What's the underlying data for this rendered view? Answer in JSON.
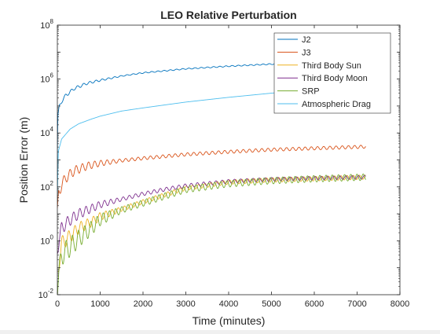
{
  "chart_data": {
    "type": "line",
    "title": "LEO Relative Perturbation",
    "xlabel": "Time (minutes)",
    "ylabel": "Position Error (m)",
    "xlim": [
      0,
      8000
    ],
    "ylim": [
      0.01,
      100000000
    ],
    "yscale": "log",
    "grid": false,
    "legend_location": "top-right",
    "x_ticks": [
      "0",
      "1000",
      "2000",
      "3000",
      "4000",
      "5000",
      "6000",
      "7000",
      "8000"
    ],
    "y_ticks": [
      {
        "base": "10",
        "exp": "-2"
      },
      {
        "base": "10",
        "exp": "0"
      },
      {
        "base": "10",
        "exp": "2"
      },
      {
        "base": "10",
        "exp": "4"
      },
      {
        "base": "10",
        "exp": "6"
      },
      {
        "base": "10",
        "exp": "8"
      }
    ],
    "series": [
      {
        "name": "J2",
        "color": "#0072BD",
        "x": [
          0,
          10,
          50,
          100,
          200,
          400,
          700,
          1000,
          1500,
          2000,
          3000,
          4000,
          5000,
          6000,
          7200
        ],
        "y": [
          1000,
          40000,
          100000,
          150000,
          250000,
          450000,
          700000,
          900000,
          1300000,
          1700000,
          2400000,
          3000000,
          3600000,
          4100000,
          4800000
        ]
      },
      {
        "name": "J3",
        "color": "#D95319",
        "x": [
          0,
          30,
          100,
          200,
          400,
          700,
          1000,
          1500,
          2000,
          3000,
          4000,
          5000,
          6000,
          7200
        ],
        "y": [
          10,
          60,
          120,
          220,
          400,
          600,
          750,
          950,
          1150,
          1600,
          2000,
          2400,
          2700,
          3100
        ]
      },
      {
        "name": "Third Body Sun",
        "color": "#EDB120",
        "x": [
          0,
          100,
          300,
          500,
          800,
          1000,
          1500,
          2000,
          2500,
          3000,
          4000,
          5000,
          6000,
          7200
        ],
        "y": [
          0.05,
          0.8,
          1.5,
          3,
          5,
          8,
          15,
          28,
          50,
          90,
          150,
          180,
          200,
          230
        ]
      },
      {
        "name": "Third Body Moon",
        "color": "#7E2F8E",
        "x": [
          0,
          100,
          300,
          500,
          800,
          1000,
          1500,
          2000,
          2500,
          3000,
          4000,
          5000,
          6000,
          7200
        ],
        "y": [
          0.5,
          3,
          6,
          10,
          16,
          22,
          35,
          55,
          80,
          110,
          160,
          190,
          210,
          230
        ]
      },
      {
        "name": "SRP",
        "color": "#77AC30",
        "x": [
          0,
          100,
          300,
          500,
          800,
          1000,
          1500,
          2000,
          2500,
          3000,
          4000,
          5000,
          6000,
          7200
        ],
        "y": [
          0.02,
          0.3,
          0.6,
          1.2,
          3,
          6,
          14,
          25,
          45,
          80,
          130,
          170,
          200,
          230
        ]
      },
      {
        "name": "Atmospheric Drag",
        "color": "#4DBEEE",
        "x": [
          0,
          20,
          100,
          300,
          500,
          800,
          1000,
          1500,
          2000,
          3000,
          4000,
          5000,
          6000,
          7200
        ],
        "y": [
          30,
          2000,
          6000,
          14000,
          22000,
          33000,
          42000,
          65000,
          85000,
          140000,
          210000,
          300000,
          400000,
          520000
        ]
      }
    ]
  }
}
